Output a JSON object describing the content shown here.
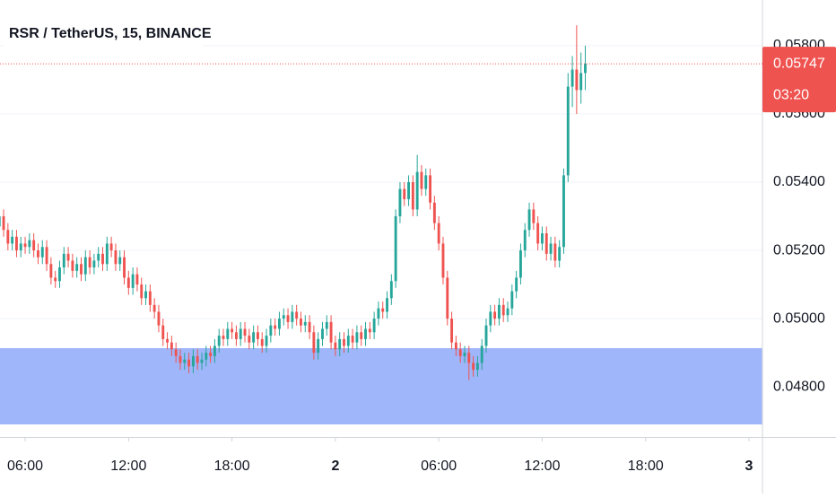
{
  "chart_data": {
    "type": "candlestick",
    "title": "RSR / TetherUS, 15, BINANCE",
    "countdown": "03:20",
    "up_color": "#26a69a",
    "down_color": "#ef5350",
    "grid": true,
    "xlim": [
      4.54,
      48.78
    ],
    "xticks": [
      {
        "value": 6,
        "label": "06:00"
      },
      {
        "value": 12,
        "label": "12:00"
      },
      {
        "value": 18,
        "label": "18:00"
      },
      {
        "value": 24,
        "label": "2"
      },
      {
        "value": 30,
        "label": "06:00"
      },
      {
        "value": 36,
        "label": "12:00"
      },
      {
        "value": 42,
        "label": "18:00"
      },
      {
        "value": 48,
        "label": "3"
      }
    ],
    "ylim": [
      0.04653,
      0.05934
    ],
    "yticks": [
      {
        "value": 0.048,
        "label": "0.04800"
      },
      {
        "value": 0.05,
        "label": "0.05000"
      },
      {
        "value": 0.052,
        "label": "0.05200"
      },
      {
        "value": 0.054,
        "label": "0.05400"
      },
      {
        "value": 0.056,
        "label": "0.05600"
      },
      {
        "value": 0.058,
        "label": "0.05800"
      }
    ],
    "x": [
      4.5,
      4.75,
      5,
      5.25,
      5.5,
      5.75,
      6,
      6.25,
      6.5,
      6.75,
      7,
      7.25,
      7.5,
      7.75,
      8,
      8.25,
      8.5,
      8.75,
      9,
      9.25,
      9.5,
      9.75,
      10,
      10.25,
      10.5,
      10.75,
      11,
      11.25,
      11.5,
      11.75,
      12,
      12.25,
      12.5,
      12.75,
      13,
      13.25,
      13.5,
      13.75,
      14,
      14.25,
      14.5,
      14.75,
      15,
      15.25,
      15.5,
      15.75,
      16,
      16.25,
      16.5,
      16.75,
      17,
      17.25,
      17.5,
      17.75,
      18,
      18.25,
      18.5,
      18.75,
      19,
      19.25,
      19.5,
      19.75,
      20,
      20.25,
      20.5,
      20.75,
      21,
      21.25,
      21.5,
      21.75,
      22,
      22.25,
      22.5,
      22.75,
      23,
      23.25,
      23.5,
      23.75,
      24,
      24.25,
      24.5,
      24.75,
      25,
      25.25,
      25.5,
      25.75,
      26,
      26.25,
      26.5,
      26.75,
      27,
      27.25,
      27.5,
      27.75,
      28,
      28.25,
      28.5,
      28.75,
      29,
      29.25,
      29.5,
      29.75,
      30,
      30.25,
      30.5,
      30.75,
      31,
      31.25,
      31.5,
      31.75,
      32,
      32.25,
      32.5,
      32.75,
      33,
      33.25,
      33.5,
      33.75,
      34,
      34.25,
      34.5,
      34.75,
      35,
      35.25,
      35.5,
      35.75,
      36,
      36.25,
      36.5,
      36.75,
      37,
      37.25,
      37.5,
      37.75,
      38,
      38.25,
      38.5
    ],
    "open": [
      0.0527,
      0.053,
      0.0526,
      0.0522,
      0.0524,
      0.052,
      0.0522,
      0.0521,
      0.0523,
      0.052,
      0.0518,
      0.0521,
      0.0516,
      0.0512,
      0.0511,
      0.0515,
      0.0519,
      0.0517,
      0.0514,
      0.0516,
      0.0513,
      0.0518,
      0.0515,
      0.0517,
      0.0519,
      0.0516,
      0.0522,
      0.052,
      0.0516,
      0.0518,
      0.0512,
      0.0509,
      0.0513,
      0.051,
      0.0506,
      0.0508,
      0.0504,
      0.0502,
      0.0498,
      0.0494,
      0.0493,
      0.0491,
      0.0489,
      0.0487,
      0.0488,
      0.0486,
      0.0489,
      0.0487,
      0.0488,
      0.049,
      0.0489,
      0.0492,
      0.0495,
      0.0494,
      0.0497,
      0.0496,
      0.0494,
      0.0497,
      0.0495,
      0.0493,
      0.0496,
      0.0494,
      0.0492,
      0.0495,
      0.0498,
      0.0497,
      0.05,
      0.0501,
      0.0499,
      0.0502,
      0.05,
      0.0498,
      0.0499,
      0.0496,
      0.049,
      0.0494,
      0.0497,
      0.0499,
      0.0493,
      0.0491,
      0.0494,
      0.0492,
      0.0495,
      0.0493,
      0.0496,
      0.0494,
      0.0497,
      0.0496,
      0.05,
      0.0503,
      0.0502,
      0.0506,
      0.0511,
      0.053,
      0.0538,
      0.0535,
      0.054,
      0.0532,
      0.0543,
      0.0538,
      0.0542,
      0.0534,
      0.0528,
      0.0522,
      0.0512,
      0.05,
      0.0493,
      0.0491,
      0.0489,
      0.049,
      0.0487,
      0.0485,
      0.0487,
      0.0492,
      0.0498,
      0.0502,
      0.05,
      0.0504,
      0.0501,
      0.0503,
      0.0508,
      0.0512,
      0.052,
      0.0526,
      0.0532,
      0.0528,
      0.0522,
      0.0525,
      0.0519,
      0.0522,
      0.0517,
      0.0521,
      0.0542,
      0.0568,
      0.0573,
      0.0567,
      0.0572
    ],
    "high": [
      0.0532,
      0.0532,
      0.0528,
      0.0526,
      0.0526,
      0.0524,
      0.0524,
      0.0525,
      0.0525,
      0.0522,
      0.0523,
      0.0523,
      0.0518,
      0.0514,
      0.0517,
      0.0521,
      0.0521,
      0.0519,
      0.0518,
      0.0518,
      0.052,
      0.052,
      0.0519,
      0.0521,
      0.0521,
      0.0524,
      0.0524,
      0.0522,
      0.052,
      0.052,
      0.0514,
      0.0515,
      0.0515,
      0.0512,
      0.051,
      0.051,
      0.0506,
      0.0504,
      0.05,
      0.0496,
      0.0495,
      0.0493,
      0.0491,
      0.049,
      0.049,
      0.0491,
      0.0491,
      0.049,
      0.0492,
      0.0492,
      0.0494,
      0.0497,
      0.0497,
      0.0499,
      0.0499,
      0.0498,
      0.0499,
      0.0499,
      0.0497,
      0.0498,
      0.0498,
      0.0496,
      0.0497,
      0.05,
      0.05,
      0.0502,
      0.0503,
      0.0503,
      0.0504,
      0.0504,
      0.0502,
      0.0501,
      0.0501,
      0.0498,
      0.0496,
      0.0499,
      0.0501,
      0.0501,
      0.0495,
      0.0496,
      0.0496,
      0.0497,
      0.0497,
      0.0498,
      0.0498,
      0.0499,
      0.0499,
      0.0502,
      0.0505,
      0.0505,
      0.0508,
      0.0513,
      0.0532,
      0.054,
      0.054,
      0.0542,
      0.0542,
      0.0548,
      0.0545,
      0.0544,
      0.0544,
      0.0536,
      0.053,
      0.0524,
      0.0514,
      0.0502,
      0.0495,
      0.0493,
      0.0492,
      0.0492,
      0.0489,
      0.0489,
      0.0494,
      0.05,
      0.0504,
      0.0504,
      0.0506,
      0.0506,
      0.0505,
      0.051,
      0.0514,
      0.0522,
      0.0528,
      0.0534,
      0.0534,
      0.053,
      0.0527,
      0.0527,
      0.0524,
      0.0524,
      0.0523,
      0.0544,
      0.0572,
      0.0577,
      0.0586,
      0.0578,
      0.058
    ],
    "low": [
      0.0525,
      0.0524,
      0.052,
      0.052,
      0.0518,
      0.0518,
      0.0519,
      0.0519,
      0.0518,
      0.0516,
      0.0516,
      0.0514,
      0.051,
      0.0509,
      0.0509,
      0.0513,
      0.0515,
      0.0512,
      0.0512,
      0.0511,
      0.0511,
      0.0513,
      0.0513,
      0.0515,
      0.0514,
      0.0514,
      0.0518,
      0.0514,
      0.0514,
      0.051,
      0.0507,
      0.0507,
      0.0508,
      0.0504,
      0.0504,
      0.0502,
      0.05,
      0.0496,
      0.0492,
      0.0491,
      0.0489,
      0.0487,
      0.0485,
      0.0485,
      0.0484,
      0.0484,
      0.0485,
      0.0485,
      0.0486,
      0.0487,
      0.0487,
      0.049,
      0.0492,
      0.0492,
      0.0494,
      0.0492,
      0.0492,
      0.0493,
      0.0491,
      0.0491,
      0.0492,
      0.049,
      0.049,
      0.0493,
      0.0495,
      0.0495,
      0.0498,
      0.0497,
      0.0497,
      0.0498,
      0.0496,
      0.0496,
      0.0494,
      0.0488,
      0.0488,
      0.0492,
      0.0495,
      0.0491,
      0.0489,
      0.0489,
      0.049,
      0.049,
      0.0491,
      0.0491,
      0.0492,
      0.0492,
      0.0494,
      0.0494,
      0.0498,
      0.05,
      0.05,
      0.0504,
      0.0509,
      0.0528,
      0.0533,
      0.0533,
      0.053,
      0.053,
      0.0536,
      0.0536,
      0.0532,
      0.0526,
      0.052,
      0.051,
      0.0498,
      0.0491,
      0.0489,
      0.0487,
      0.0487,
      0.0482,
      0.0483,
      0.0483,
      0.0485,
      0.049,
      0.0496,
      0.0498,
      0.0498,
      0.0499,
      0.0499,
      0.0501,
      0.0506,
      0.051,
      0.0518,
      0.0524,
      0.0526,
      0.052,
      0.052,
      0.0517,
      0.0517,
      0.0515,
      0.0515,
      0.0519,
      0.054,
      0.0562,
      0.056,
      0.0563,
      0.0567
    ],
    "close": [
      0.053,
      0.0526,
      0.0522,
      0.0524,
      0.052,
      0.0522,
      0.0521,
      0.0523,
      0.052,
      0.0518,
      0.0521,
      0.0516,
      0.0512,
      0.0511,
      0.0515,
      0.0519,
      0.0517,
      0.0514,
      0.0516,
      0.0513,
      0.0518,
      0.0515,
      0.0517,
      0.0519,
      0.0516,
      0.0522,
      0.052,
      0.0516,
      0.0518,
      0.0512,
      0.0509,
      0.0513,
      0.051,
      0.0506,
      0.0508,
      0.0504,
      0.0502,
      0.0498,
      0.0494,
      0.0493,
      0.0491,
      0.0489,
      0.0487,
      0.0488,
      0.0486,
      0.0489,
      0.0487,
      0.0488,
      0.049,
      0.0489,
      0.0492,
      0.0495,
      0.0494,
      0.0497,
      0.0496,
      0.0494,
      0.0497,
      0.0495,
      0.0493,
      0.0496,
      0.0494,
      0.0492,
      0.0495,
      0.0498,
      0.0497,
      0.05,
      0.0501,
      0.0499,
      0.0502,
      0.05,
      0.0498,
      0.0499,
      0.0496,
      0.049,
      0.0494,
      0.0497,
      0.0499,
      0.0493,
      0.0491,
      0.0494,
      0.0492,
      0.0495,
      0.0493,
      0.0496,
      0.0494,
      0.0497,
      0.0496,
      0.05,
      0.0503,
      0.0502,
      0.0506,
      0.0511,
      0.053,
      0.0538,
      0.0535,
      0.054,
      0.0532,
      0.0543,
      0.0538,
      0.0542,
      0.0534,
      0.0528,
      0.0522,
      0.0512,
      0.05,
      0.0493,
      0.0491,
      0.0489,
      0.049,
      0.0487,
      0.0485,
      0.0487,
      0.0492,
      0.0498,
      0.0502,
      0.05,
      0.0504,
      0.0501,
      0.0503,
      0.0508,
      0.0512,
      0.052,
      0.0526,
      0.0532,
      0.0528,
      0.0522,
      0.0525,
      0.0519,
      0.0522,
      0.0517,
      0.0521,
      0.0542,
      0.0568,
      0.0573,
      0.0567,
      0.0572,
      0.05747
    ]
  }
}
